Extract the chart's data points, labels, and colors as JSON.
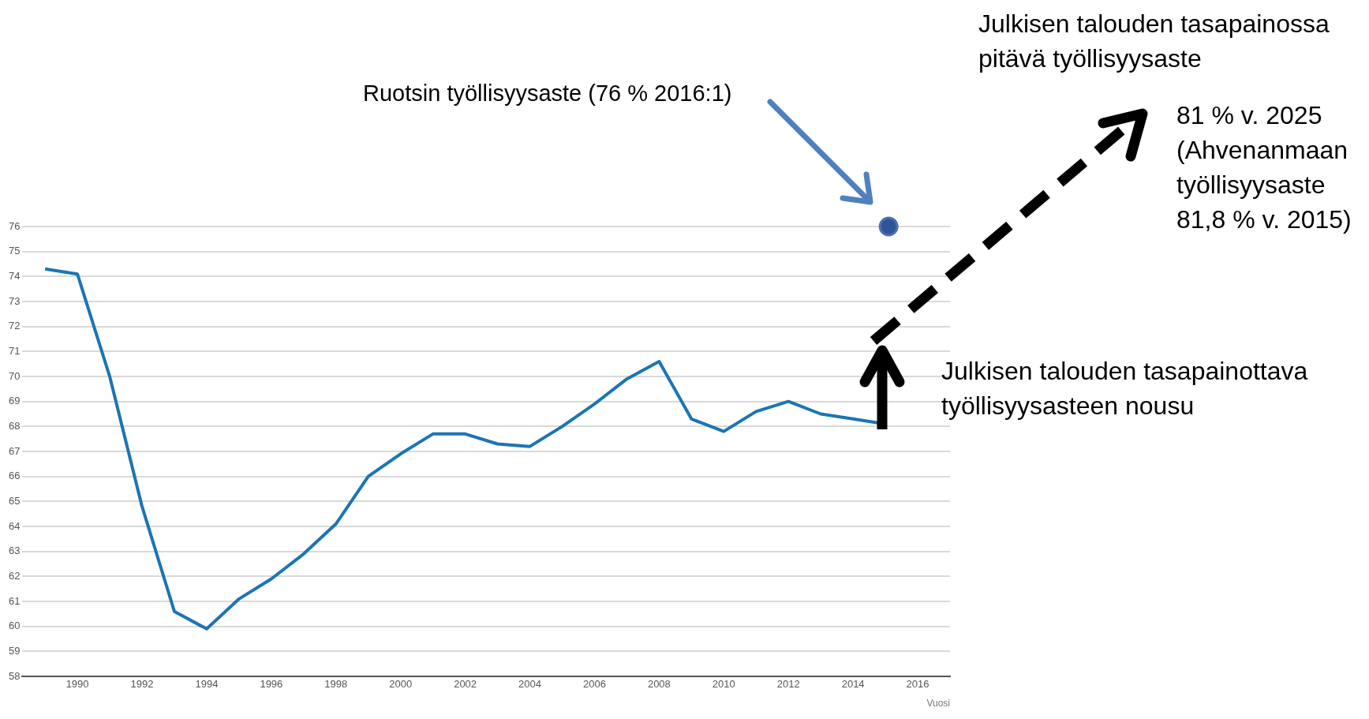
{
  "chart_data": {
    "type": "line",
    "xlabel": "Vuosi",
    "annotations": [
      "Ruotsin työllisyysaste (76 % 2016:1)",
      "Julkisen talouden tasapainossa\npitävä työllisyysaste",
      "81 % v. 2025\n(Ahvenanmaan\ntyöllisyysaste\n81,8 % v. 2015)",
      "Julkisen talouden tasapainottava\ntyöllisyysasteen nousu"
    ],
    "xlim": [
      1988.3,
      2017
    ],
    "xticks": [
      1990,
      1992,
      1994,
      1996,
      1998,
      2000,
      2002,
      2004,
      2006,
      2008,
      2010,
      2012,
      2014,
      2016
    ],
    "ylim": [
      58,
      76
    ],
    "yticks": [
      58,
      59,
      60,
      61,
      62,
      63,
      64,
      65,
      66,
      67,
      68,
      69,
      70,
      71,
      72,
      73,
      74,
      75,
      76
    ],
    "grid": "y",
    "legend": false,
    "series": [
      {
        "type": "line",
        "marker": "none",
        "color": "#1b75b3",
        "x": [
          1989,
          1990,
          1991,
          1992,
          1993,
          1994,
          1995,
          1996,
          1997,
          1998,
          1999,
          2000,
          2001,
          2002,
          2003,
          2004,
          2005,
          2006,
          2007,
          2008,
          2009,
          2010,
          2011,
          2012,
          2013,
          2014,
          2015
        ],
        "values": [
          74.3,
          74.1,
          70.0,
          64.8,
          60.6,
          59.9,
          61.1,
          61.9,
          62.9,
          64.1,
          66.0,
          66.9,
          67.7,
          67.7,
          67.3,
          67.2,
          68.0,
          68.9,
          69.9,
          70.6,
          68.3,
          67.8,
          68.6,
          69.0,
          68.5,
          68.3,
          68.1
        ]
      },
      {
        "type": "scatter",
        "marker": "circle",
        "color": "#2f5597",
        "x": [
          2015.1
        ],
        "values": [
          76
        ]
      }
    ]
  }
}
